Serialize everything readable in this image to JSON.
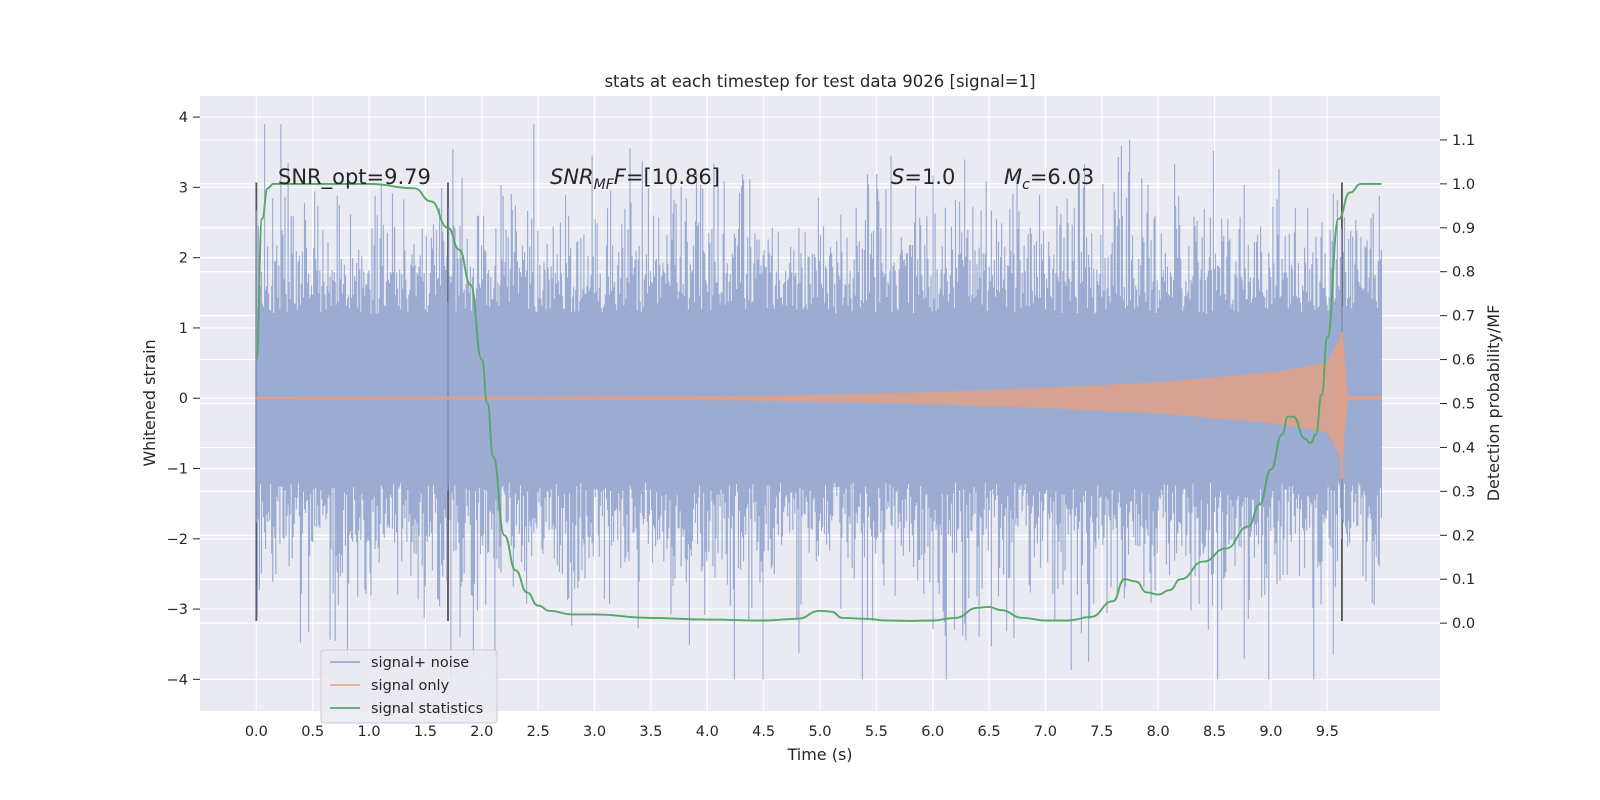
{
  "chart_data": {
    "type": "line",
    "title": "stats at each timestep for test data 9026 [signal=1]",
    "xlabel": "Time (s)",
    "ylabel": "Whitened strain",
    "ylabel_right": "Detection probability/MF",
    "xlim": [
      -0.5,
      10.5
    ],
    "ylim": [
      -4.45,
      4.3
    ],
    "ylim_right": [
      -0.2,
      1.2
    ],
    "xticks": [
      "0.0",
      "0.5",
      "1.0",
      "1.5",
      "2.0",
      "2.5",
      "3.0",
      "3.5",
      "4.0",
      "4.5",
      "5.0",
      "5.5",
      "6.0",
      "6.5",
      "7.0",
      "7.5",
      "8.0",
      "8.5",
      "9.0",
      "9.5"
    ],
    "yticks": [
      4,
      3,
      2,
      1,
      0,
      -1,
      -2,
      -3,
      -4
    ],
    "yticks_right": [
      1.1,
      1.0,
      0.9,
      0.8,
      0.7,
      0.6,
      0.5,
      0.4,
      0.3,
      0.2,
      0.1,
      0.0
    ],
    "grid": true,
    "legend_position": "lower-left",
    "annotations": {
      "snr_opt": "SNR_opt=9.79",
      "snr_mf": "=[10.86]",
      "s_value": "=1.0",
      "mc_value": "=6.03"
    },
    "markers_x": [
      0.0,
      1.7,
      9.63
    ],
    "series": [
      {
        "name": "signal+ noise",
        "color": "#8da0cb",
        "x_range": [
          0.0,
          9.98
        ],
        "note": "noisy whitened strain, roughly +/-2.5 amplitude with spikes to about 3.9 and -4.0"
      },
      {
        "name": "signal only",
        "color": "#e1a087",
        "x_range": [
          0.0,
          9.98
        ],
        "envelope": {
          "x": [
            0.0,
            4.0,
            5.0,
            6.0,
            7.0,
            8.0,
            9.0,
            9.5,
            9.63,
            9.68
          ],
          "amp": [
            0.01,
            0.02,
            0.04,
            0.08,
            0.14,
            0.22,
            0.36,
            0.5,
            0.9,
            0.02
          ]
        }
      },
      {
        "name": "signal statistics",
        "color": "#55a868",
        "x": [
          0.0,
          0.05,
          0.1,
          0.15,
          0.25,
          0.5,
          1.0,
          1.4,
          1.55,
          1.7,
          1.8,
          1.9,
          2.0,
          2.05,
          2.1,
          2.2,
          2.3,
          2.4,
          2.5,
          2.6,
          2.8,
          3.0,
          3.5,
          4.0,
          4.5,
          4.8,
          5.0,
          5.1,
          5.2,
          5.4,
          5.6,
          5.8,
          6.0,
          6.2,
          6.4,
          6.5,
          6.6,
          6.8,
          7.0,
          7.2,
          7.4,
          7.6,
          7.7,
          7.8,
          7.9,
          8.0,
          8.1,
          8.2,
          8.4,
          8.6,
          8.8,
          8.9,
          9.0,
          9.1,
          9.15,
          9.2,
          9.3,
          9.35,
          9.4,
          9.45,
          9.5,
          9.6,
          9.7,
          9.8,
          9.9,
          9.98
        ],
        "values": [
          0.6,
          0.92,
          0.99,
          1.0,
          1.0,
          1.0,
          1.0,
          0.99,
          0.96,
          0.9,
          0.85,
          0.77,
          0.6,
          0.5,
          0.38,
          0.2,
          0.12,
          0.07,
          0.04,
          0.028,
          0.02,
          0.02,
          0.012,
          0.008,
          0.006,
          0.01,
          0.028,
          0.026,
          0.012,
          0.01,
          0.006,
          0.005,
          0.006,
          0.012,
          0.035,
          0.037,
          0.03,
          0.012,
          0.006,
          0.006,
          0.014,
          0.05,
          0.1,
          0.095,
          0.07,
          0.065,
          0.075,
          0.1,
          0.14,
          0.17,
          0.22,
          0.27,
          0.35,
          0.43,
          0.47,
          0.47,
          0.42,
          0.41,
          0.43,
          0.52,
          0.65,
          0.92,
          0.98,
          1.0,
          1.0,
          1.0
        ]
      }
    ]
  }
}
